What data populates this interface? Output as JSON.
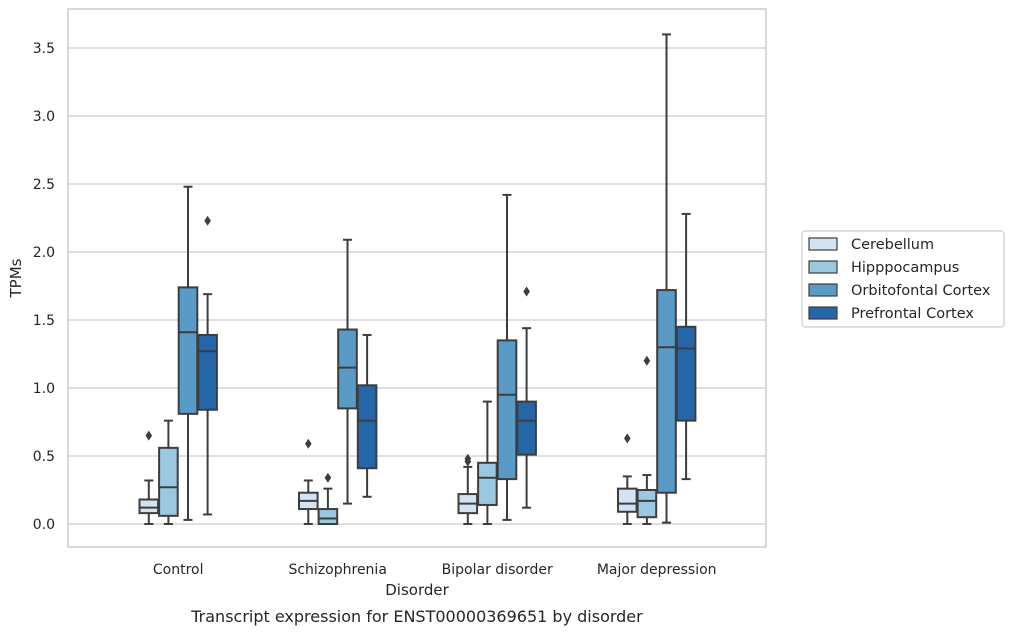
{
  "chart_data": {
    "type": "boxplot",
    "title": "",
    "caption": "Transcript expression for ENST00000369651 by disorder",
    "xlabel": "Disorder",
    "ylabel": "TPMs",
    "ylim": [
      -0.17,
      3.77
    ],
    "yticks": [
      0.0,
      0.5,
      1.0,
      1.5,
      2.0,
      2.5,
      3.0,
      3.5
    ],
    "ytick_labels": [
      "0.0",
      "0.5",
      "1.0",
      "1.5",
      "2.0",
      "2.5",
      "3.0",
      "3.5"
    ],
    "grid": true,
    "legend_position": "right-center",
    "categories": [
      "Control",
      "Schizophrenia",
      "Bipolar disorder",
      "Major depression"
    ],
    "series": [
      {
        "name": "Cerebellum",
        "color": "#d4e3f2",
        "boxes": [
          {
            "whislo": 0.0,
            "q1": 0.08,
            "med": 0.12,
            "q3": 0.18,
            "whishi": 0.32,
            "fliers": [
              0.65
            ]
          },
          {
            "whislo": 0.0,
            "q1": 0.11,
            "med": 0.17,
            "q3": 0.23,
            "whishi": 0.32,
            "fliers": [
              0.59
            ]
          },
          {
            "whislo": 0.0,
            "q1": 0.08,
            "med": 0.15,
            "q3": 0.22,
            "whishi": 0.42,
            "fliers": [
              0.46,
              0.48
            ]
          },
          {
            "whislo": 0.0,
            "q1": 0.09,
            "med": 0.15,
            "q3": 0.26,
            "whishi": 0.35,
            "fliers": [
              0.63
            ]
          }
        ]
      },
      {
        "name": "Hipppocampus",
        "color": "#9ac8e0",
        "boxes": [
          {
            "whislo": 0.0,
            "q1": 0.06,
            "med": 0.27,
            "q3": 0.56,
            "whishi": 0.76,
            "fliers": []
          },
          {
            "whislo": 0.0,
            "q1": 0.0,
            "med": 0.04,
            "q3": 0.11,
            "whishi": 0.26,
            "fliers": [
              0.34
            ]
          },
          {
            "whislo": 0.0,
            "q1": 0.14,
            "med": 0.34,
            "q3": 0.45,
            "whishi": 0.9,
            "fliers": []
          },
          {
            "whislo": 0.0,
            "q1": 0.05,
            "med": 0.17,
            "q3": 0.25,
            "whishi": 0.36,
            "fliers": [
              1.2
            ]
          }
        ]
      },
      {
        "name": "Orbitofontal Cortex",
        "color": "#5a9ac7",
        "boxes": [
          {
            "whislo": 0.03,
            "q1": 0.81,
            "med": 1.41,
            "q3": 1.74,
            "whishi": 2.48,
            "fliers": []
          },
          {
            "whislo": 0.15,
            "q1": 0.85,
            "med": 1.15,
            "q3": 1.43,
            "whishi": 2.09,
            "fliers": []
          },
          {
            "whislo": 0.03,
            "q1": 0.33,
            "med": 0.95,
            "q3": 1.35,
            "whishi": 2.42,
            "fliers": []
          },
          {
            "whislo": 0.01,
            "q1": 0.23,
            "med": 1.3,
            "q3": 1.72,
            "whishi": 3.6,
            "fliers": []
          }
        ]
      },
      {
        "name": "Prefrontal Cortex",
        "color": "#2566a8",
        "boxes": [
          {
            "whislo": 0.07,
            "q1": 0.84,
            "med": 1.27,
            "q3": 1.39,
            "whishi": 1.69,
            "fliers": [
              2.23
            ]
          },
          {
            "whislo": 0.2,
            "q1": 0.41,
            "med": 0.76,
            "q3": 1.02,
            "whishi": 1.39,
            "fliers": []
          },
          {
            "whislo": 0.12,
            "q1": 0.51,
            "med": 0.76,
            "q3": 0.9,
            "whishi": 1.44,
            "fliers": [
              1.71
            ]
          },
          {
            "whislo": 0.33,
            "q1": 0.76,
            "med": 1.29,
            "q3": 1.45,
            "whishi": 2.28,
            "fliers": []
          }
        ]
      }
    ]
  }
}
